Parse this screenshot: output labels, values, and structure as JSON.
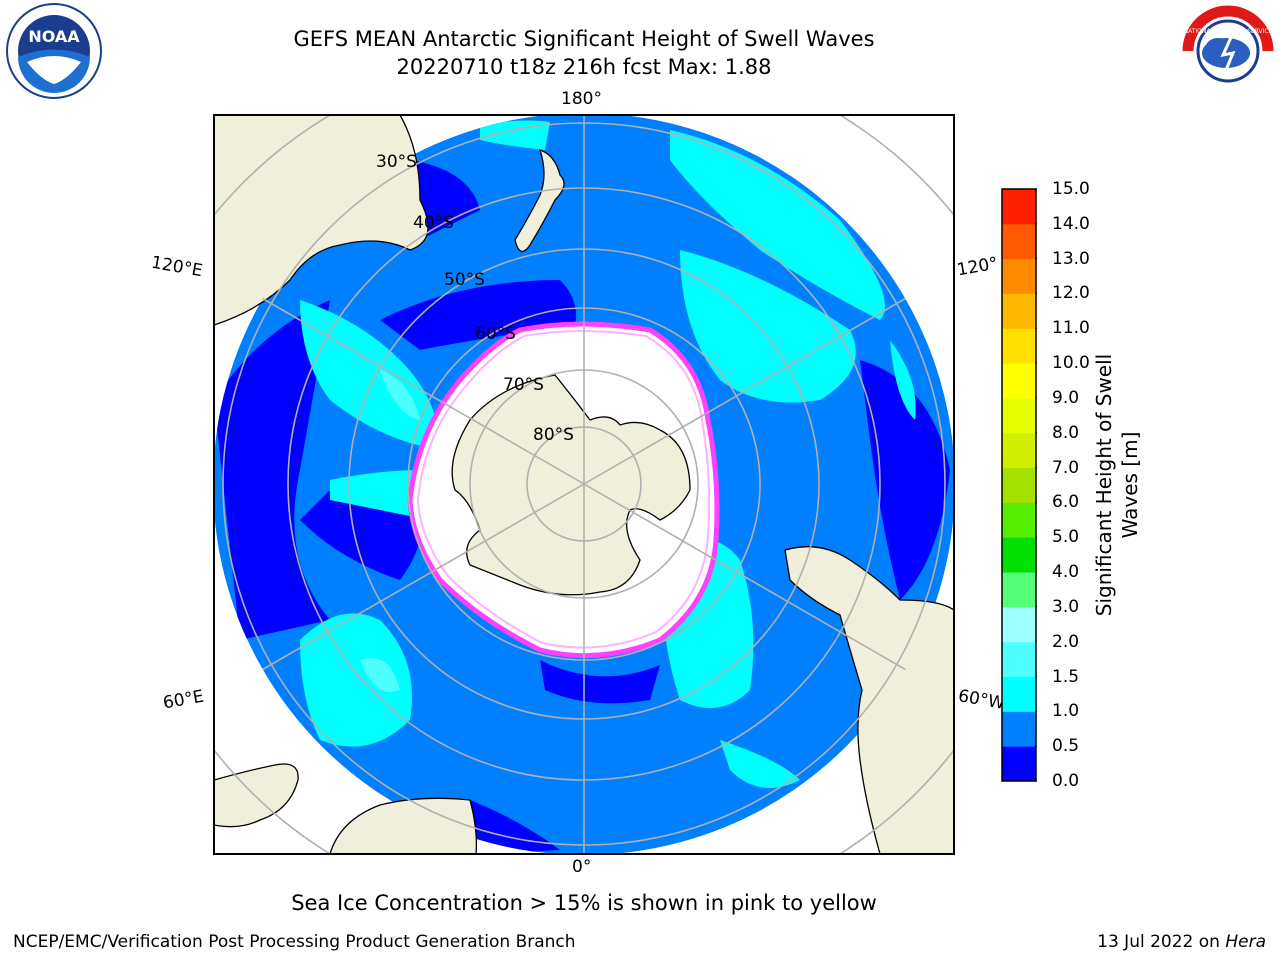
{
  "header": {
    "title_line1": "GEFS MEAN Antarctic Significant Height of Swell Waves",
    "title_line2": "20220710 t18z 216h fcst   Max: 1.88"
  },
  "map": {
    "projection": "south-polar-stereographic",
    "longitude_labels": {
      "top": "180°",
      "bottom": "0°",
      "left_upper": "120°E",
      "left_lower": "60°E",
      "right_upper": "120°",
      "right_lower": "60°W"
    },
    "latitude_labels": [
      "30°S",
      "40°S",
      "50°S",
      "60°S",
      "70°S",
      "80°S"
    ],
    "colors": {
      "land": "#efefdc",
      "open_ocean_0_0_5": "#0000ff",
      "ocean_0_5_1_0": "#0080ff",
      "ocean_1_0_1_5": "#00ffff",
      "ocean_1_5_2_0": "#4dffff",
      "sea_ice": "#ffffff",
      "ice_edge": "#ff40ff",
      "grid": "#b0b0b0"
    }
  },
  "colorbar": {
    "label": "Significant Height of Swell Waves [m]",
    "ticks": [
      "0.0",
      "0.5",
      "1.0",
      "1.5",
      "2.0",
      "3.0",
      "4.0",
      "5.0",
      "6.0",
      "7.0",
      "8.0",
      "9.0",
      "10.0",
      "11.0",
      "12.0",
      "13.0",
      "14.0",
      "15.0"
    ],
    "colors": [
      "#0000ff",
      "#0080ff",
      "#00ffff",
      "#4dffff",
      "#a0ffff",
      "#55ff77",
      "#00e000",
      "#55ee00",
      "#a6e000",
      "#d0ee00",
      "#e6ff00",
      "#ffff00",
      "#ffe000",
      "#ffb800",
      "#ff8c00",
      "#ff5a00",
      "#ff2000",
      "#ff0000"
    ]
  },
  "caption": "Sea Ice Concentration > 15% is shown in pink to yellow",
  "footer": {
    "left": "NCEP/EMC/Verification Post Processing Product Generation Branch",
    "right_prefix": "13 Jul 2022 on ",
    "right_italic": "Hera"
  },
  "logos": {
    "left": "NOAA",
    "right": "NATIONAL WEATHER SERVICE"
  }
}
